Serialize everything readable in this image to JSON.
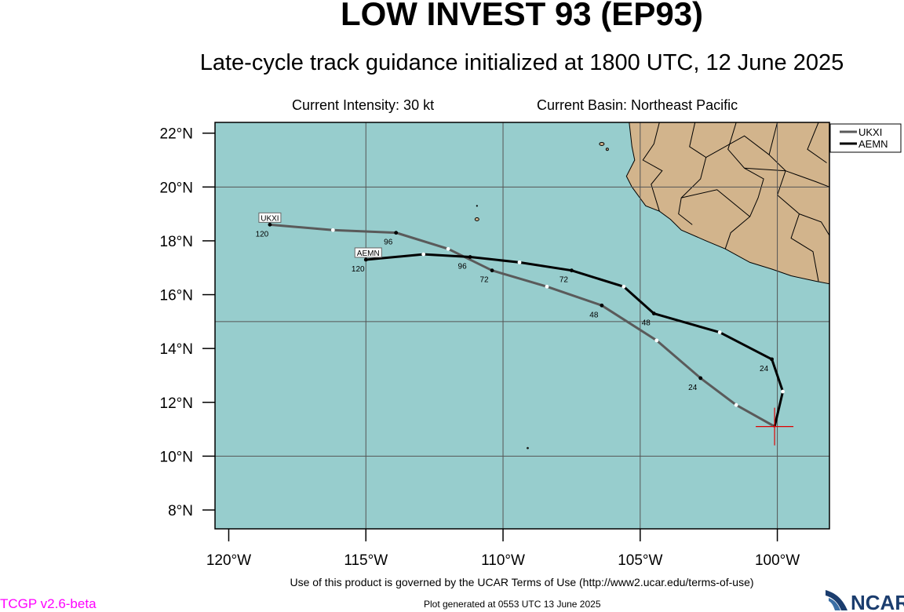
{
  "header": {
    "title": "LOW INVEST 93 (EP93)",
    "subtitle": "Late-cycle track guidance initialized at 1800 UTC, 12 June 2025",
    "intensity": "Current Intensity: 30 kt",
    "basin": "Current Basin: Northeast Pacific"
  },
  "map": {
    "lon_range": [
      -120.5,
      -98.1
    ],
    "lat_range": [
      7.3,
      22.4
    ],
    "ocean_color": "#97cdcd",
    "land_color": "#d2b48c",
    "lat_ticks": [
      "22°N",
      "20°N",
      "18°N",
      "16°N",
      "14°N",
      "12°N",
      "10°N",
      "8°N"
    ],
    "lon_ticks": [
      "120°W",
      "115°W",
      "110°W",
      "105°W",
      "100°W"
    ],
    "initial_position": {
      "lon": -100.1,
      "lat": 11.1
    }
  },
  "tracks": [
    {
      "name": "UKXI",
      "color": "#5a5a5a",
      "label_hour": "120",
      "points": [
        {
          "lon": -100.1,
          "lat": 11.1,
          "hour": 0
        },
        {
          "lon": -101.5,
          "lat": 11.9,
          "hour": 12
        },
        {
          "lon": -102.8,
          "lat": 12.9,
          "hour": 24
        },
        {
          "lon": -104.4,
          "lat": 14.3,
          "hour": 36
        },
        {
          "lon": -106.4,
          "lat": 15.6,
          "hour": 48
        },
        {
          "lon": -108.4,
          "lat": 16.3,
          "hour": 60
        },
        {
          "lon": -110.4,
          "lat": 16.9,
          "hour": 72
        },
        {
          "lon": -112.0,
          "lat": 17.7,
          "hour": 84
        },
        {
          "lon": -113.9,
          "lat": 18.3,
          "hour": 96
        },
        {
          "lon": -116.2,
          "lat": 18.4,
          "hour": 108
        },
        {
          "lon": -118.5,
          "lat": 18.6,
          "hour": 120
        }
      ],
      "tau_labels": [
        "24",
        "48",
        "72",
        "96",
        "120"
      ]
    },
    {
      "name": "AEMN",
      "color": "#000000",
      "label_hour": "120",
      "points": [
        {
          "lon": -100.1,
          "lat": 11.1,
          "hour": 0
        },
        {
          "lon": -99.8,
          "lat": 12.4,
          "hour": 12
        },
        {
          "lon": -100.2,
          "lat": 13.6,
          "hour": 24
        },
        {
          "lon": -102.1,
          "lat": 14.6,
          "hour": 36
        },
        {
          "lon": -104.5,
          "lat": 15.3,
          "hour": 48
        },
        {
          "lon": -105.6,
          "lat": 16.3,
          "hour": 60
        },
        {
          "lon": -107.5,
          "lat": 16.9,
          "hour": 72
        },
        {
          "lon": -109.4,
          "lat": 17.2,
          "hour": 84
        },
        {
          "lon": -111.2,
          "lat": 17.4,
          "hour": 96
        },
        {
          "lon": -112.9,
          "lat": 17.5,
          "hour": 108
        },
        {
          "lon": -115.0,
          "lat": 17.3,
          "hour": 120
        }
      ],
      "tau_labels": [
        "24",
        "48",
        "72",
        "96",
        "120"
      ]
    }
  ],
  "legend": {
    "entries": [
      {
        "name": "UKXI",
        "color": "#5a5a5a"
      },
      {
        "name": "AEMN",
        "color": "#000000"
      }
    ]
  },
  "footer": {
    "terms": "Use of this product is governed by the UCAR Terms of Use (http://www2.ucar.edu/terms-of-use)",
    "generated": "Plot generated at 0553 UTC   13 June 2025",
    "version": "TCGP v2.6-beta",
    "logo": "NCAR"
  }
}
